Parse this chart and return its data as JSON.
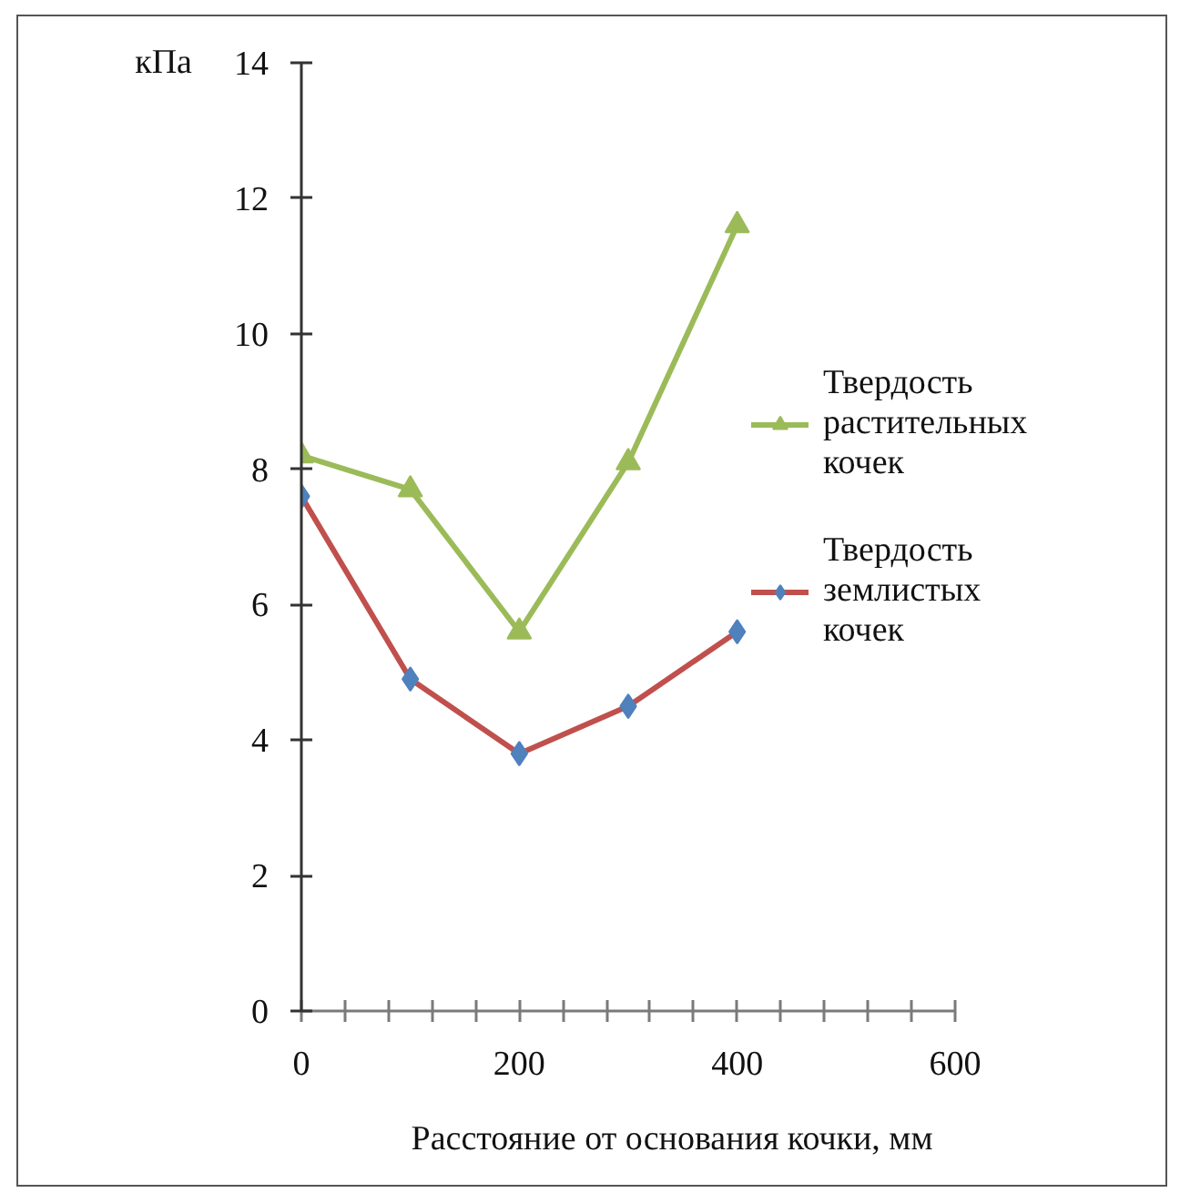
{
  "chart_data": {
    "type": "line",
    "xlabel": "Расстояние от основания кочки, мм",
    "ylabel": "кПа",
    "x": [
      0,
      100,
      200,
      300,
      400
    ],
    "series": [
      {
        "name": "Твердость растительных кочек",
        "color": "#9bbb59",
        "marker": "triangle",
        "values": [
          8.2,
          7.7,
          5.6,
          8.1,
          11.6
        ]
      },
      {
        "name": "Твердость землистых кочек",
        "color": "#c0504d",
        "colors": [
          "#4f81bd",
          "#4f81bd",
          "#4f81bd",
          "#4f81bd",
          "#4f81bd"
        ],
        "marker": "diamond",
        "values": [
          7.6,
          4.9,
          3.8,
          4.5,
          5.6
        ]
      }
    ],
    "xlim": [
      0,
      600
    ],
    "ylim": [
      0,
      14
    ],
    "xticks": [
      0,
      {
        "value": 40,
        "label": null
      },
      {
        "value": 80,
        "label": null
      },
      {
        "value": 120,
        "label": null
      },
      {
        "value": 160,
        "label": null
      },
      200,
      {
        "value": 240,
        "label": null
      },
      {
        "value": 280,
        "label": null
      },
      {
        "value": 320,
        "label": null
      },
      {
        "value": 360,
        "label": null
      },
      400,
      {
        "value": 440,
        "label": null
      },
      {
        "value": 480,
        "label": null
      },
      {
        "value": 520,
        "label": null
      },
      {
        "value": 560,
        "label": null
      },
      600
    ],
    "yticks": [
      0,
      2,
      4,
      6,
      8,
      10,
      12,
      14
    ],
    "grid": false,
    "legend": "right"
  }
}
